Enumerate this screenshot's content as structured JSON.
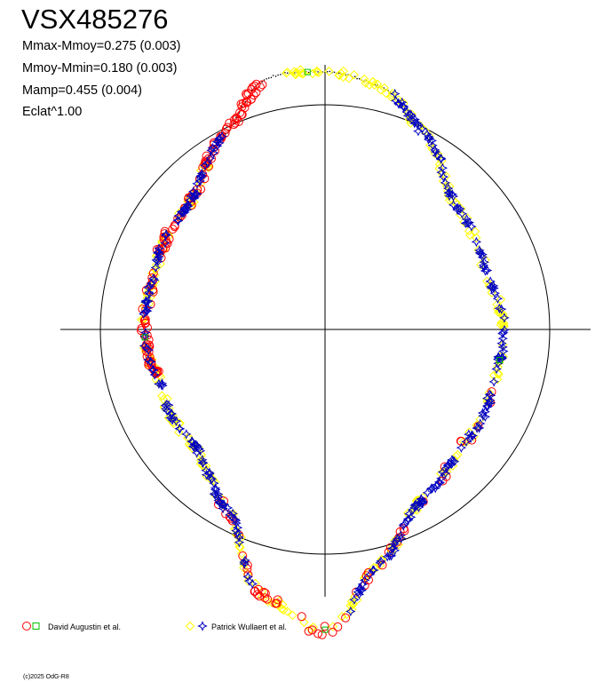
{
  "header": {
    "title": "VSX485276",
    "stats": [
      "Mmax-Mmoy=0.275 (0.003)",
      "Mmoy-Mmin=0.180 (0.003)",
      "Mamp=0.455 (0.004)",
      "Eclat^1.00"
    ]
  },
  "legend": {
    "items": [
      {
        "label": "David Augustin et al.",
        "colors": [
          "#ff0000",
          "#00c000"
        ]
      },
      {
        "label": "Patrick Wullaert et al.",
        "colors": [
          "#ffff00",
          "#0000c0"
        ]
      }
    ]
  },
  "footer": {
    "copyright": "(c)2025 OdG-R8"
  },
  "chart_data": {
    "type": "scatter",
    "projection": "polar light curve (phase as angle, brightness as radius)",
    "reference_circle": true,
    "axes_cross": true,
    "mmax_minus_mmoy": 0.275,
    "mmax_minus_mmoy_err": 0.003,
    "mmoy_minus_mmin": 0.18,
    "mmoy_minus_mmin_err": 0.003,
    "amplitude": 0.455,
    "amplitude_err": 0.004,
    "eclat_exponent": 1.0,
    "series": [
      {
        "name": "David Augustin et al.",
        "markers": [
          "circle",
          "square"
        ],
        "colors": [
          "#ff0000",
          "#00c000"
        ]
      },
      {
        "name": "Patrick Wullaert et al.",
        "markers": [
          "diamond",
          "star"
        ],
        "colors": [
          "#ffff00",
          "#0000c0"
        ]
      }
    ],
    "curve_shape": [
      [
        0.0,
        0.84
      ],
      [
        0.05,
        0.83
      ],
      [
        0.1,
        0.78
      ],
      [
        0.15,
        0.72
      ],
      [
        0.2,
        0.75
      ],
      [
        0.25,
        0.81
      ],
      [
        0.3,
        0.78
      ],
      [
        0.35,
        0.72
      ],
      [
        0.4,
        0.71
      ],
      [
        0.45,
        0.8
      ],
      [
        0.5,
        0.98
      ],
      [
        0.55,
        0.91
      ],
      [
        0.6,
        0.74
      ],
      [
        0.65,
        0.7
      ],
      [
        0.7,
        0.76
      ],
      [
        0.75,
        0.82
      ],
      [
        0.8,
        0.79
      ],
      [
        0.85,
        0.74
      ],
      [
        0.9,
        0.78
      ],
      [
        0.95,
        0.86
      ],
      [
        1.0,
        0.84
      ]
    ]
  }
}
